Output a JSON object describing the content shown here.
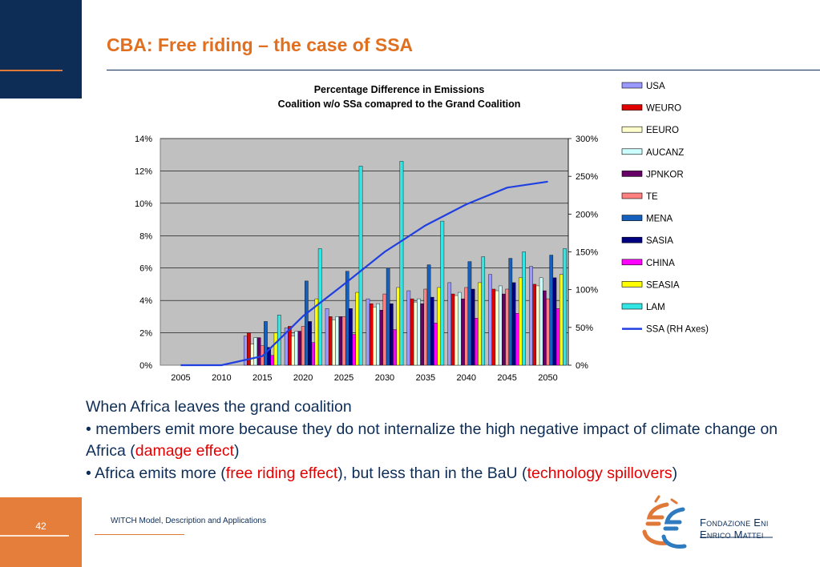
{
  "slide": {
    "title": "CBA: Free riding – the case of SSA",
    "page_number": "42",
    "footer": "WITCH Model, Description and Applications",
    "logo_line1": "Fondazione Eni",
    "logo_line2": "Enrico Mattei"
  },
  "body": {
    "line1": "When Africa leaves the grand coalition",
    "b1_start": "• members emit more because they do not internalize the high negative impact of climate change on Africa (",
    "b1_red": "damage effect",
    "b1_end": ")",
    "b2_start": "• Africa emits more (",
    "b2_red1": "free riding effect",
    "b2_mid": "), but less than in the BaU (",
    "b2_red2": "technology spillovers",
    "b2_end": ")"
  },
  "chart_data": {
    "type": "bar",
    "title_line1": "Percentage Difference in Emissions",
    "title_line2": "Coalition w/o SSa comapred to the Grand Coalition",
    "categories": [
      "2005",
      "2010",
      "2015",
      "2020",
      "2025",
      "2030",
      "2035",
      "2040",
      "2045",
      "2050"
    ],
    "y_left": {
      "ticks": [
        "0%",
        "2%",
        "4%",
        "6%",
        "8%",
        "10%",
        "12%",
        "14%"
      ],
      "min": 0,
      "max": 14
    },
    "y_right": {
      "ticks": [
        "0%",
        "50%",
        "100%",
        "150%",
        "200%",
        "250%",
        "300%"
      ],
      "min": 0,
      "max": 300
    },
    "grid": true,
    "legend_position": "right",
    "series": [
      {
        "name": "USA",
        "color": "#9999ff",
        "values": [
          0,
          0,
          1.8,
          2.3,
          3.5,
          4.1,
          4.6,
          5.1,
          5.6,
          6.1
        ]
      },
      {
        "name": "WEURO",
        "color": "#e00000",
        "values": [
          0,
          0,
          2.0,
          2.4,
          3.0,
          3.8,
          4.1,
          4.4,
          4.7,
          5.0
        ]
      },
      {
        "name": "EEURO",
        "color": "#ffffcc",
        "values": [
          0,
          0,
          1.3,
          1.8,
          2.8,
          3.6,
          3.9,
          4.3,
          4.6,
          4.9
        ]
      },
      {
        "name": "AUCANZ",
        "color": "#ccffff",
        "values": [
          0,
          0,
          1.7,
          2.1,
          3.0,
          3.8,
          4.1,
          4.5,
          4.9,
          5.4
        ]
      },
      {
        "name": "JPNKOR",
        "color": "#660066",
        "values": [
          0,
          0,
          1.7,
          2.1,
          3.0,
          3.4,
          3.8,
          4.1,
          4.4,
          4.6
        ]
      },
      {
        "name": "TE",
        "color": "#ff8080",
        "values": [
          0,
          0,
          1.2,
          2.4,
          3.0,
          4.4,
          4.7,
          4.8,
          4.7,
          4.1
        ]
      },
      {
        "name": "MENA",
        "color": "#1560bd",
        "values": [
          0,
          0,
          2.7,
          5.2,
          5.8,
          6.0,
          6.2,
          6.4,
          6.6,
          6.8
        ]
      },
      {
        "name": "SASIA",
        "color": "#000080",
        "values": [
          0,
          0,
          1.1,
          2.7,
          3.5,
          3.8,
          4.2,
          4.7,
          5.1,
          5.4
        ]
      },
      {
        "name": "CHINA",
        "color": "#ff00ff",
        "values": [
          0,
          0,
          0.6,
          1.4,
          1.9,
          2.2,
          2.6,
          2.9,
          3.2,
          3.5
        ]
      },
      {
        "name": "SEASIA",
        "color": "#ffff00",
        "values": [
          0,
          0,
          2.0,
          4.1,
          4.5,
          4.8,
          4.8,
          5.1,
          5.4,
          5.6
        ]
      },
      {
        "name": "LAM",
        "color": "#33e6e6",
        "values": [
          0,
          0,
          3.1,
          7.2,
          12.3,
          12.6,
          8.9,
          6.7,
          7.0,
          7.2
        ]
      }
    ],
    "line_series": {
      "name": "SSA (RH Axes)",
      "color": "#1f3fe0",
      "axis": "right",
      "values": [
        0,
        0,
        12,
        65,
        107,
        150,
        185,
        213,
        235,
        243
      ]
    }
  }
}
